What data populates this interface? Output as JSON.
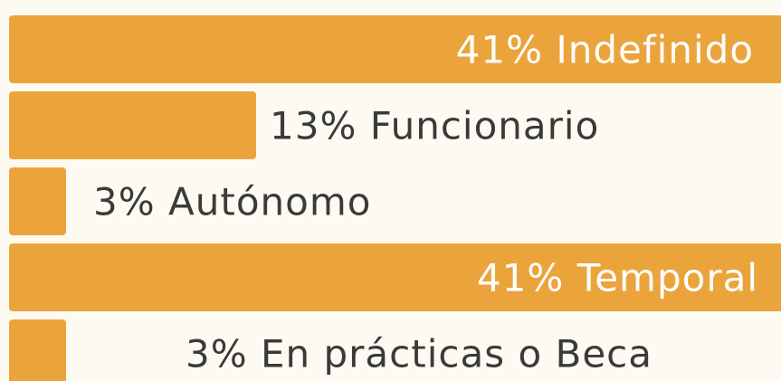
{
  "chart_data": {
    "type": "bar",
    "orientation": "horizontal",
    "categories": [
      "Indefinido",
      "Funcionario",
      "Autónomo",
      "Temporal",
      "En prácticas o Beca"
    ],
    "values": [
      41,
      13,
      3,
      41,
      3
    ],
    "value_labels": [
      "41%",
      "13%",
      "3%",
      "41%",
      "3%"
    ],
    "color": "#eba43c"
  }
}
